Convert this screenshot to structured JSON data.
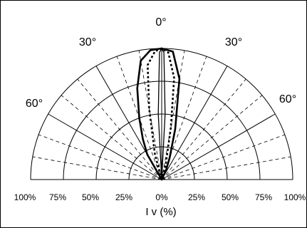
{
  "chart_data": {
    "type": "polar-half",
    "xlabel": "I v (%)",
    "radial_ticks": [
      "100%",
      "75%",
      "50%",
      "25%",
      "0%",
      "25%",
      "50%",
      "75%",
      "100%"
    ],
    "radial_levels": [
      25,
      50,
      75,
      100
    ],
    "angle_labels": [
      {
        "angle": 0,
        "label": "0°"
      },
      {
        "angle": -30,
        "label": "30°"
      },
      {
        "angle": 30,
        "label": "30°"
      },
      {
        "angle": -60,
        "label": "60°"
      },
      {
        "angle": 60,
        "label": "60°"
      }
    ],
    "solid_spokes_deg": [
      -90,
      -60,
      -30,
      0,
      30,
      60,
      90
    ],
    "dashed_spokes_deg": [
      -80,
      -70,
      -50,
      -40,
      -20,
      -10,
      10,
      20,
      40,
      50,
      70,
      80
    ],
    "series": [
      {
        "line_style": "solid",
        "points": [
          {
            "angle": -90,
            "r": 0
          },
          {
            "angle": -30,
            "r": 22
          },
          {
            "angle": -25,
            "r": 34
          },
          {
            "angle": -20,
            "r": 50
          },
          {
            "angle": -15,
            "r": 72
          },
          {
            "angle": -10,
            "r": 92
          },
          {
            "angle": -5,
            "r": 99
          },
          {
            "angle": 0,
            "r": 100
          },
          {
            "angle": 5,
            "r": 98
          },
          {
            "angle": 10,
            "r": 78
          },
          {
            "angle": 15,
            "r": 40
          },
          {
            "angle": 20,
            "r": 18
          },
          {
            "angle": 25,
            "r": 8
          },
          {
            "angle": 90,
            "r": 0
          }
        ]
      },
      {
        "line_style": "dotted",
        "points": [
          {
            "angle": -90,
            "r": 0
          },
          {
            "angle": -15,
            "r": 20
          },
          {
            "angle": -10,
            "r": 55
          },
          {
            "angle": -7,
            "r": 88
          },
          {
            "angle": -3,
            "r": 98
          },
          {
            "angle": 0,
            "r": 100
          },
          {
            "angle": 3,
            "r": 97
          },
          {
            "angle": 7,
            "r": 78
          },
          {
            "angle": 10,
            "r": 40
          },
          {
            "angle": 15,
            "r": 12
          },
          {
            "angle": 90,
            "r": 0
          }
        ]
      },
      {
        "line_style": "thin-solid",
        "points": [
          {
            "angle": -90,
            "r": 0
          },
          {
            "angle": -3,
            "r": 50
          },
          {
            "angle": -1,
            "r": 97
          },
          {
            "angle": 0,
            "r": 100
          },
          {
            "angle": 1,
            "r": 97
          },
          {
            "angle": 3,
            "r": 50
          },
          {
            "angle": 90,
            "r": 0
          }
        ]
      }
    ]
  }
}
